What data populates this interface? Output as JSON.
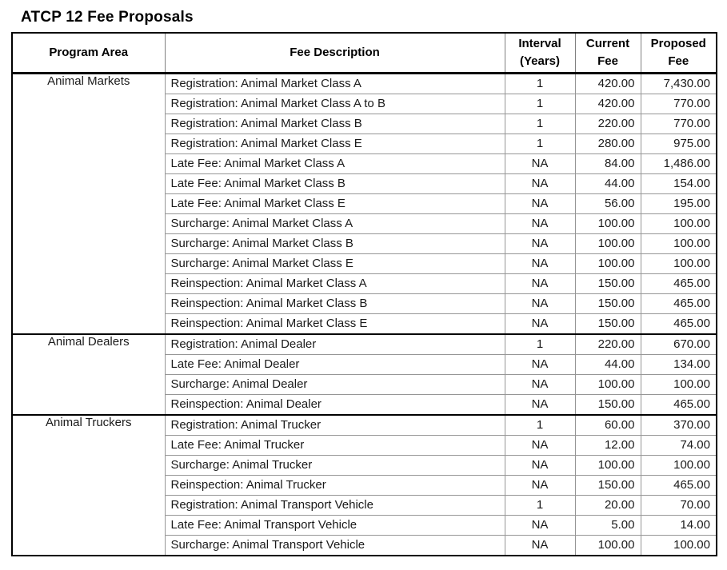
{
  "page": {
    "title": "ATCP 12 Fee Proposals"
  },
  "colors": {
    "outer_border": "#000000",
    "section_border": "#000000",
    "gridline": "#969696",
    "text": "#1a1a1a",
    "background": "#ffffff"
  },
  "table": {
    "headers": {
      "program_area": "Program Area",
      "fee_description": "Fee Description",
      "interval": {
        "line1": "Interval",
        "line2": "(Years)"
      },
      "current": {
        "line1": "Current",
        "line2": "Fee"
      },
      "proposed": {
        "line1": "Proposed",
        "line2": "Fee"
      }
    },
    "groups": [
      {
        "program_area": "Animal Markets",
        "rows": [
          {
            "desc": "Registration: Animal Market Class A",
            "interval": "1",
            "current": "420.00",
            "proposed": "7,430.00"
          },
          {
            "desc": "Registration: Animal Market Class A to B",
            "interval": "1",
            "current": "420.00",
            "proposed": "770.00"
          },
          {
            "desc": "Registration: Animal Market Class B",
            "interval": "1",
            "current": "220.00",
            "proposed": "770.00"
          },
          {
            "desc": "Registration: Animal Market Class E",
            "interval": "1",
            "current": "280.00",
            "proposed": "975.00"
          },
          {
            "desc": "Late Fee: Animal Market Class A",
            "interval": "NA",
            "current": "84.00",
            "proposed": "1,486.00"
          },
          {
            "desc": "Late Fee: Animal Market Class B",
            "interval": "NA",
            "current": "44.00",
            "proposed": "154.00"
          },
          {
            "desc": "Late Fee: Animal Market Class E",
            "interval": "NA",
            "current": "56.00",
            "proposed": "195.00"
          },
          {
            "desc": "Surcharge: Animal Market Class A",
            "interval": "NA",
            "current": "100.00",
            "proposed": "100.00"
          },
          {
            "desc": "Surcharge: Animal Market Class B",
            "interval": "NA",
            "current": "100.00",
            "proposed": "100.00"
          },
          {
            "desc": "Surcharge: Animal Market Class E",
            "interval": "NA",
            "current": "100.00",
            "proposed": "100.00"
          },
          {
            "desc": "Reinspection: Animal Market Class A",
            "interval": "NA",
            "current": "150.00",
            "proposed": "465.00"
          },
          {
            "desc": "Reinspection: Animal Market Class B",
            "interval": "NA",
            "current": "150.00",
            "proposed": "465.00"
          },
          {
            "desc": "Reinspection: Animal Market Class E",
            "interval": "NA",
            "current": "150.00",
            "proposed": "465.00"
          }
        ]
      },
      {
        "program_area": "Animal Dealers",
        "rows": [
          {
            "desc": "Registration: Animal Dealer",
            "interval": "1",
            "current": "220.00",
            "proposed": "670.00"
          },
          {
            "desc": "Late Fee: Animal Dealer",
            "interval": "NA",
            "current": "44.00",
            "proposed": "134.00"
          },
          {
            "desc": "Surcharge: Animal Dealer",
            "interval": "NA",
            "current": "100.00",
            "proposed": "100.00"
          },
          {
            "desc": "Reinspection: Animal Dealer",
            "interval": "NA",
            "current": "150.00",
            "proposed": "465.00"
          }
        ]
      },
      {
        "program_area": "Animal Truckers",
        "rows": [
          {
            "desc": "Registration: Animal Trucker",
            "interval": "1",
            "current": "60.00",
            "proposed": "370.00"
          },
          {
            "desc": "Late Fee: Animal Trucker",
            "interval": "NA",
            "current": "12.00",
            "proposed": "74.00"
          },
          {
            "desc": "Surcharge: Animal Trucker",
            "interval": "NA",
            "current": "100.00",
            "proposed": "100.00"
          },
          {
            "desc": "Reinspection: Animal Trucker",
            "interval": "NA",
            "current": "150.00",
            "proposed": "465.00"
          },
          {
            "desc": "Registration: Animal Transport Vehicle",
            "interval": "1",
            "current": "20.00",
            "proposed": "70.00"
          },
          {
            "desc": "Late Fee: Animal Transport Vehicle",
            "interval": "NA",
            "current": "5.00",
            "proposed": "14.00"
          },
          {
            "desc": "Surcharge: Animal Transport Vehicle",
            "interval": "NA",
            "current": "100.00",
            "proposed": "100.00"
          }
        ]
      }
    ]
  }
}
